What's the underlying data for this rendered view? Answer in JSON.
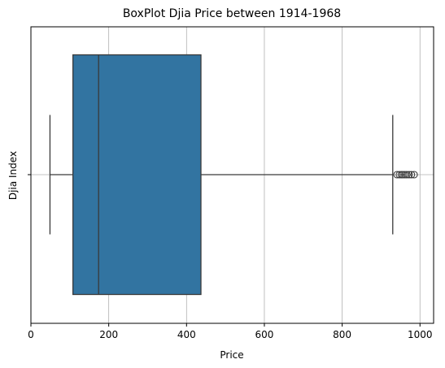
{
  "chart_data": {
    "type": "boxplot",
    "title": "BoxPlot Djia Price between 1914-1968",
    "xlabel": "Price",
    "ylabel": "Djia Index",
    "xlim": [
      0,
      1035
    ],
    "xticks": [
      0,
      200,
      400,
      600,
      800,
      1000
    ],
    "grid": "x",
    "orientation": "horizontal",
    "box": {
      "whisker_low": 49,
      "q1": 108,
      "median": 174,
      "q3": 437,
      "whisker_high": 930
    },
    "outliers": [
      941,
      947,
      952,
      956,
      961,
      966,
      972,
      978,
      985
    ]
  },
  "colors": {
    "box_fill": "#3274a1",
    "line": "#3a3a3a",
    "grid": "#b0b0b0"
  }
}
